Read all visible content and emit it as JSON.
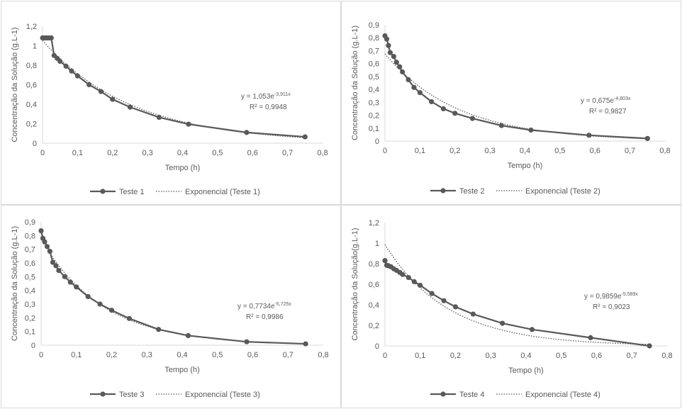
{
  "colors": {
    "series": "#595959",
    "axis": "#d9d9d9",
    "text": "#595959",
    "background": "#ffffff"
  },
  "chart_data": [
    {
      "type": "line",
      "series": [
        {
          "name": "Teste 1",
          "points": [
            [
              0,
              1.08
            ],
            [
              0.005,
              1.08
            ],
            [
              0.01,
              1.08
            ],
            [
              0.015,
              1.08
            ],
            [
              0.02,
              1.08
            ],
            [
              0.025,
              1.08
            ],
            [
              0.033,
              0.9
            ],
            [
              0.042,
              0.87
            ],
            [
              0.05,
              0.84
            ],
            [
              0.067,
              0.79
            ],
            [
              0.083,
              0.74
            ],
            [
              0.1,
              0.69
            ],
            [
              0.133,
              0.6
            ],
            [
              0.167,
              0.53
            ],
            [
              0.2,
              0.45
            ],
            [
              0.25,
              0.37
            ],
            [
              0.333,
              0.265
            ],
            [
              0.417,
              0.195
            ],
            [
              0.583,
              0.11
            ],
            [
              0.75,
              0.065
            ]
          ]
        },
        {
          "name": "Exponencial (Teste 1)",
          "trend": {
            "a": 1.053,
            "b": -3.911
          }
        }
      ],
      "equation": {
        "base": "y = 1,053e",
        "exponent": "-3,911x",
        "r2": "R² = 0,9948"
      },
      "xlabel": "Tempo  (h)",
      "ylabel": "Concentração da Solução (g.L-1)",
      "xlim": [
        0,
        0.8
      ],
      "ylim": [
        0,
        1.2
      ],
      "xticks": [
        "0",
        "0,1",
        "0,2",
        "0,3",
        "0,4",
        "0,5",
        "0,6",
        "0,7",
        "0,8"
      ],
      "yticks": [
        "0",
        "0,2",
        "0,4",
        "0,6",
        "0,8",
        "1",
        "1,2"
      ],
      "legend_position": "bottom"
    },
    {
      "type": "line",
      "series": [
        {
          "name": "Teste 2",
          "points": [
            [
              0,
              0.815
            ],
            [
              0.005,
              0.79
            ],
            [
              0.01,
              0.74
            ],
            [
              0.015,
              0.685
            ],
            [
              0.025,
              0.655
            ],
            [
              0.033,
              0.61
            ],
            [
              0.042,
              0.575
            ],
            [
              0.05,
              0.535
            ],
            [
              0.067,
              0.475
            ],
            [
              0.083,
              0.415
            ],
            [
              0.1,
              0.375
            ],
            [
              0.133,
              0.305
            ],
            [
              0.167,
              0.25
            ],
            [
              0.2,
              0.215
            ],
            [
              0.25,
              0.175
            ],
            [
              0.333,
              0.12
            ],
            [
              0.417,
              0.085
            ],
            [
              0.583,
              0.045
            ],
            [
              0.75,
              0.02
            ]
          ]
        },
        {
          "name": "Exponencial (Teste 2)",
          "trend": {
            "a": 0.675,
            "b": -4.803
          }
        }
      ],
      "equation": {
        "base": "y = 0,675e",
        "exponent": "-4,803x",
        "r2": "R² = 0,9827"
      },
      "xlabel": "Tempo  (h)",
      "ylabel": "Concentração da Solução (g.L-1)",
      "xlim": [
        0,
        0.8
      ],
      "ylim": [
        0,
        0.9
      ],
      "xticks": [
        "0",
        "0,1",
        "0,2",
        "0,3",
        "0,4",
        "0,5",
        "0,6",
        "0,7",
        "0,8"
      ],
      "yticks": [
        "0",
        "0,1",
        "0,2",
        "0,3",
        "0,4",
        "0,5",
        "0,6",
        "0,7",
        "0,8",
        "0,9"
      ],
      "legend_position": "bottom"
    },
    {
      "type": "line",
      "series": [
        {
          "name": "Teste 3",
          "points": [
            [
              0,
              0.835
            ],
            [
              0.005,
              0.78
            ],
            [
              0.01,
              0.755
            ],
            [
              0.017,
              0.72
            ],
            [
              0.025,
              0.685
            ],
            [
              0.033,
              0.605
            ],
            [
              0.042,
              0.58
            ],
            [
              0.05,
              0.545
            ],
            [
              0.067,
              0.5
            ],
            [
              0.083,
              0.46
            ],
            [
              0.1,
              0.425
            ],
            [
              0.133,
              0.355
            ],
            [
              0.167,
              0.3
            ],
            [
              0.2,
              0.255
            ],
            [
              0.25,
              0.195
            ],
            [
              0.333,
              0.115
            ],
            [
              0.417,
              0.07
            ],
            [
              0.583,
              0.025
            ],
            [
              0.75,
              0.01
            ]
          ]
        },
        {
          "name": "Exponencial (Teste 3)",
          "trend": {
            "a": 0.7734,
            "b": -5.725
          }
        }
      ],
      "equation": {
        "base": "y = 0,7734e",
        "exponent": "-5,725x",
        "r2": "R² = 0,9986"
      },
      "xlabel": "Tempo  (h)",
      "ylabel": "Concentração da Solução (g.L-1)",
      "xlim": [
        0,
        0.8
      ],
      "ylim": [
        0,
        0.9
      ],
      "xticks": [
        "0",
        "0,1",
        "0,2",
        "0,3",
        "0,4",
        "0,5",
        "0,6",
        "0,7",
        "0,8"
      ],
      "yticks": [
        "0",
        "0,1",
        "0,2",
        "0,3",
        "0,4",
        "0,5",
        "0,6",
        "0,7",
        "0,8",
        "0,9"
      ],
      "legend_position": "bottom"
    },
    {
      "type": "line",
      "series": [
        {
          "name": "Teste 4",
          "points": [
            [
              0,
              0.83
            ],
            [
              0.005,
              0.785
            ],
            [
              0.01,
              0.78
            ],
            [
              0.017,
              0.77
            ],
            [
              0.025,
              0.75
            ],
            [
              0.033,
              0.735
            ],
            [
              0.042,
              0.715
            ],
            [
              0.05,
              0.695
            ],
            [
              0.067,
              0.665
            ],
            [
              0.083,
              0.625
            ],
            [
              0.1,
              0.59
            ],
            [
              0.133,
              0.51
            ],
            [
              0.167,
              0.44
            ],
            [
              0.2,
              0.38
            ],
            [
              0.25,
              0.31
            ],
            [
              0.333,
              0.22
            ],
            [
              0.417,
              0.16
            ],
            [
              0.583,
              0.08
            ],
            [
              0.75,
              0.0
            ]
          ]
        },
        {
          "name": "Exponencial (Teste 4)",
          "trend": {
            "a": 0.9859,
            "b": -5.589
          }
        }
      ],
      "equation": {
        "base": "y = 0,9859e",
        "exponent": "-5,589x",
        "r2": "R² = 0,9023"
      },
      "xlabel": "Tempo  (h)",
      "ylabel": "Concentração da Solução(g.L-1)",
      "xlim": [
        0,
        0.8
      ],
      "ylim": [
        0,
        1.2
      ],
      "xticks": [
        "0",
        "0,1",
        "0,2",
        "0,3",
        "0,4",
        "0,5",
        "0,6",
        "0,7",
        "0,8"
      ],
      "yticks": [
        "0",
        "0,2",
        "0,4",
        "0,6",
        "0,8",
        "1",
        "1,2"
      ],
      "legend_position": "bottom"
    }
  ]
}
